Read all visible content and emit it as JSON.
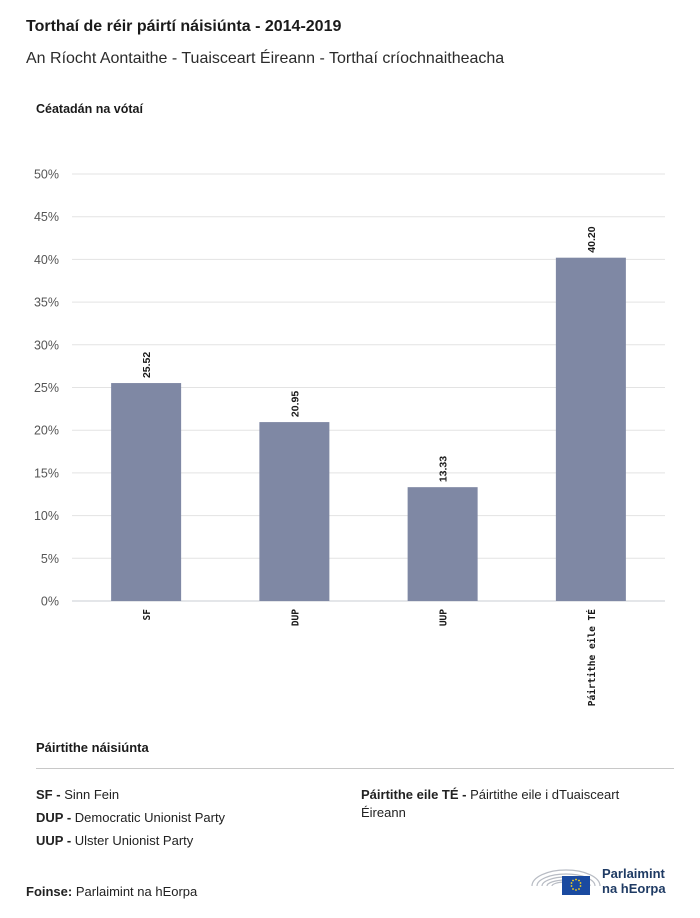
{
  "header": {
    "title": "Torthaí de réir páirtí náisiúnta - 2014-2019",
    "subtitle": "An Ríocht Aontaithe - Tuaisceart Éireann - Torthaí críochnaitheacha"
  },
  "chart_data": {
    "type": "bar",
    "ylabel": "Céatadán na vótaí",
    "ylim": [
      0,
      50
    ],
    "yticks": [
      "0%",
      "5%",
      "10%",
      "15%",
      "20%",
      "25%",
      "30%",
      "35%",
      "40%",
      "45%",
      "50%"
    ],
    "categories": [
      "SF",
      "DUP",
      "UUP",
      "Páirtithe eile TÉ"
    ],
    "values": [
      25.52,
      20.95,
      13.33,
      40.2
    ],
    "value_labels": [
      "25.52",
      "20.95",
      "13.33",
      "40.20"
    ],
    "grid": true,
    "bar_color": "#7f88a4"
  },
  "legend": {
    "title": "Páirtithe náisiúnta",
    "items": [
      {
        "code": "SF -",
        "name": "Sinn Fein"
      },
      {
        "code": "DUP -",
        "name": "Democratic Unionist Party"
      },
      {
        "code": "UUP -",
        "name": "Ulster Unionist Party"
      },
      {
        "code": "Páirtithe eile TÉ -",
        "name": "Páirtithe eile i dTuaisceart Éireann"
      }
    ]
  },
  "footer": {
    "source_label": "Foinse:",
    "source_value": "Parlaimint na hEorpa",
    "logo_line1": "Parlaimint",
    "logo_line2": "na hEorpa"
  },
  "colors": {
    "bar": "#7f88a4",
    "grid": "#e3e3e3",
    "logo_blue": "#1f3b64",
    "eu_flag": "#1a4aa0"
  }
}
